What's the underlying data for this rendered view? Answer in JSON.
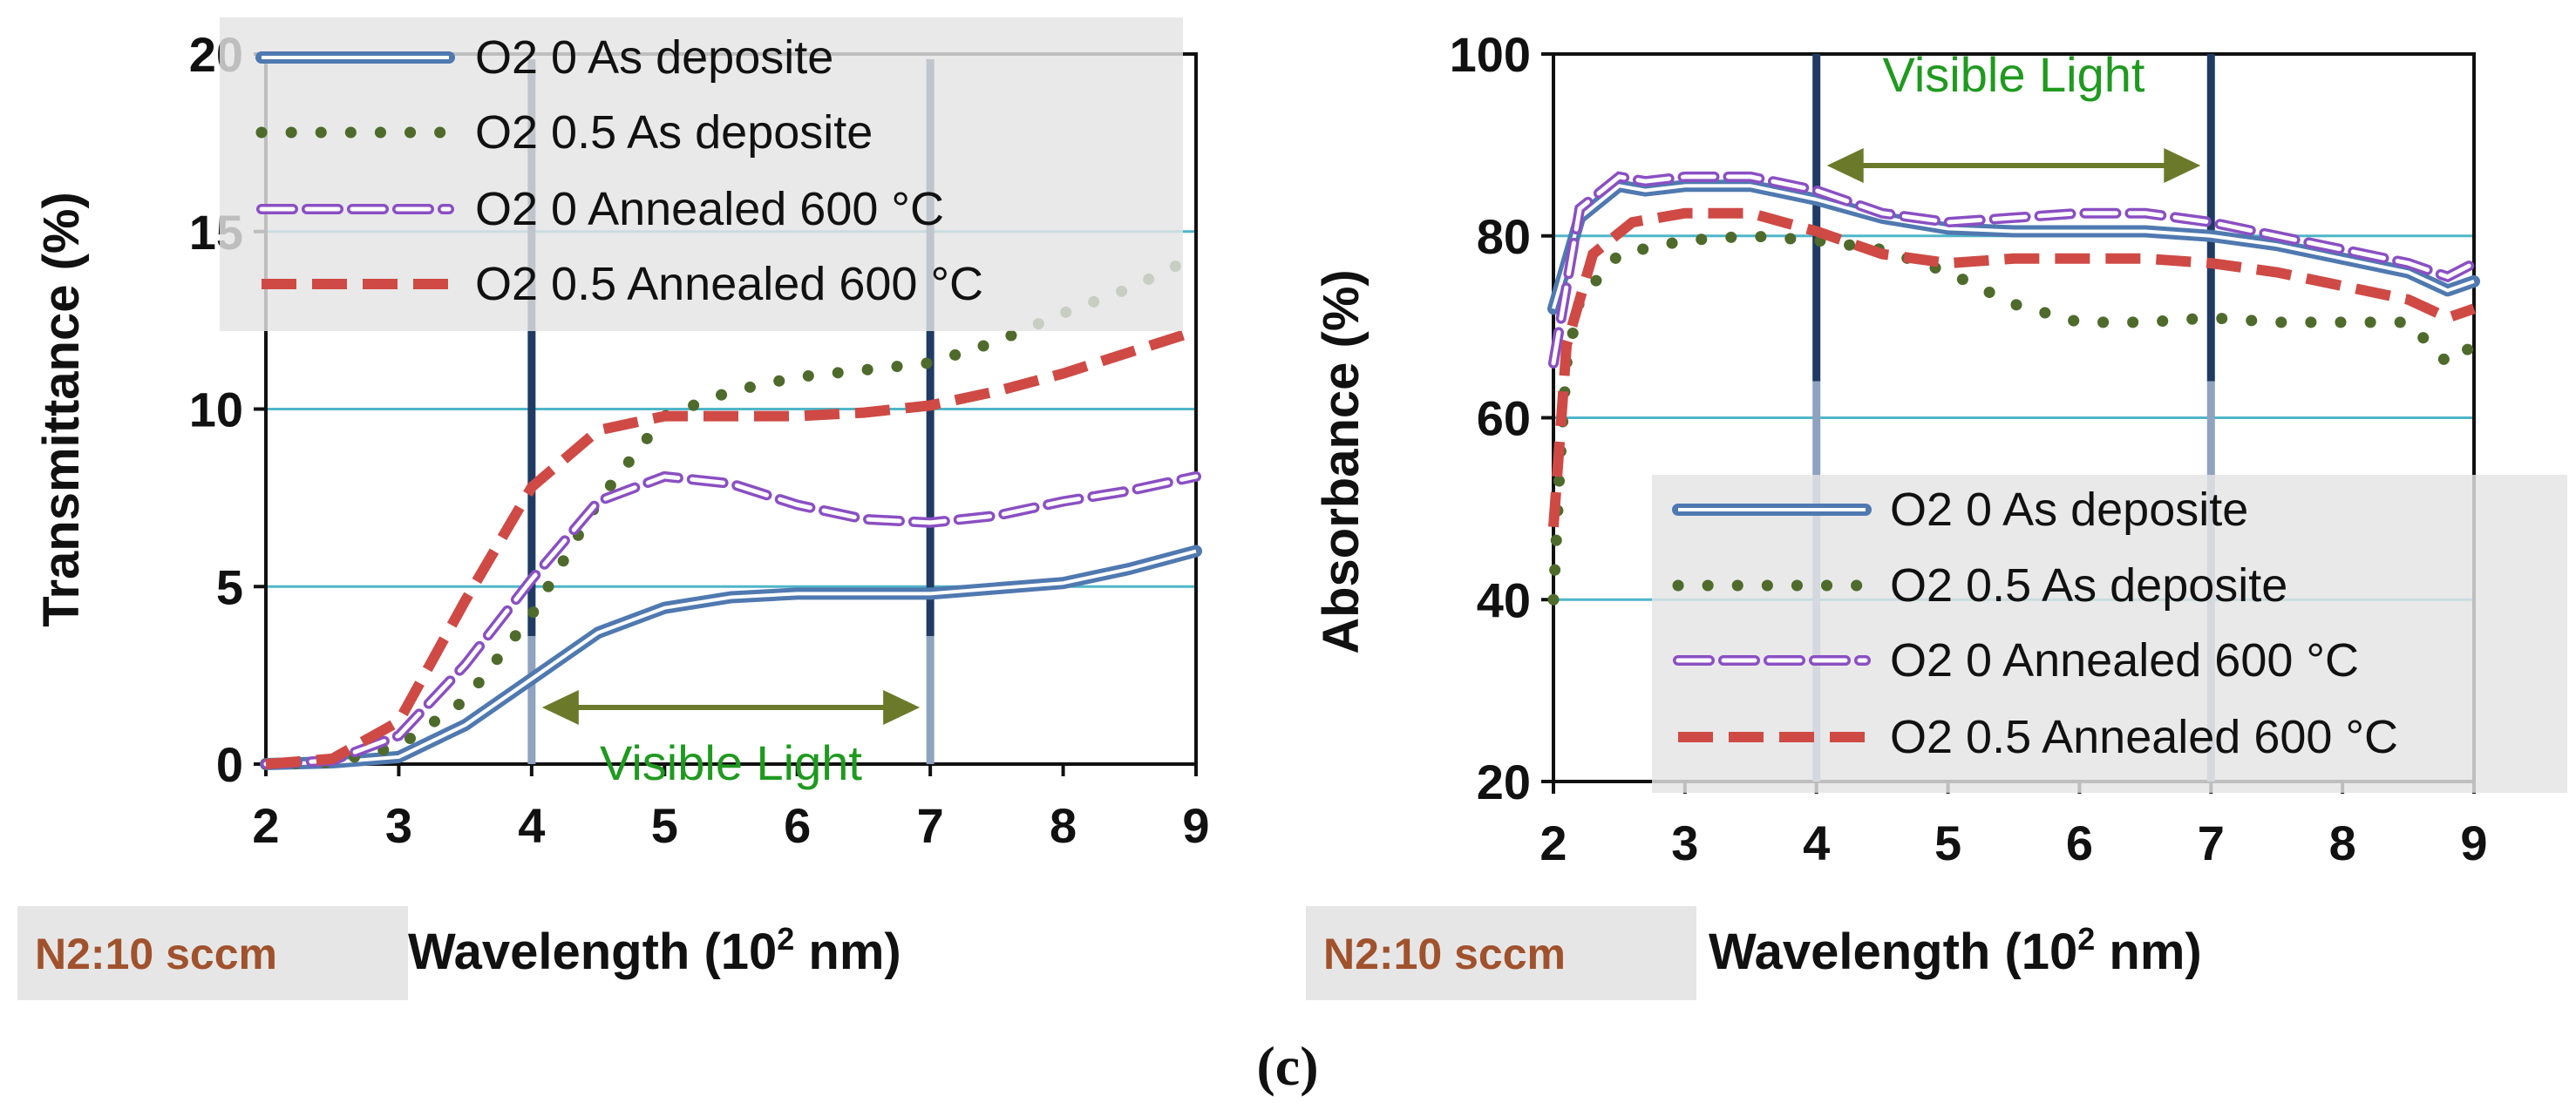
{
  "caption": "(c)",
  "colors": {
    "grid": "#4fb6c8",
    "vline": "#1f3b63",
    "arrow": "#6b7a2a",
    "visible_text": "#1f9a1f",
    "badge_text": "#a0522d",
    "badge_bg": "#e6e6e6",
    "legend_bg": "#e4e4e4"
  },
  "chart_data": [
    {
      "type": "line",
      "id": "left",
      "ylabel": "Transmittance  (%)",
      "xlabel": "Wavelength (10",
      "xlabel_sup": "2",
      "xlabel_tail": " nm)",
      "badge": "N2:10 sccm",
      "xlim": [
        2,
        9
      ],
      "ylim": [
        0,
        20
      ],
      "xticks": [
        2,
        3,
        4,
        5,
        6,
        7,
        8,
        9
      ],
      "yticks": [
        0,
        5,
        10,
        15,
        20
      ],
      "grid": "horizontal",
      "visible_band": {
        "from": 4,
        "to": 7,
        "label": "Visible Light",
        "label_position": "bottom"
      },
      "legend": {
        "position": "top"
      },
      "series": [
        {
          "name": "O2 0 As deposite",
          "style": "double",
          "color": "#4f79b0",
          "x": [
            2,
            2.5,
            3,
            3.5,
            4,
            4.5,
            5,
            5.5,
            6,
            6.5,
            7,
            7.5,
            8,
            8.5,
            9
          ],
          "y": [
            0,
            0.05,
            0.2,
            1.1,
            2.4,
            3.7,
            4.4,
            4.7,
            4.8,
            4.8,
            4.8,
            4.95,
            5.1,
            5.5,
            6.0
          ]
        },
        {
          "name": "O2 0.5 As deposite",
          "style": "dotted",
          "color": "#4e6b2c",
          "x": [
            2,
            2.5,
            3,
            3.5,
            4,
            4.5,
            5,
            5.5,
            6,
            6.5,
            7,
            7.5,
            8,
            8.5,
            9
          ],
          "y": [
            0,
            0.05,
            0.5,
            1.8,
            4.2,
            7.4,
            9.8,
            10.5,
            10.9,
            11.1,
            11.3,
            11.9,
            12.7,
            13.4,
            14.3
          ]
        },
        {
          "name": "O2 0 Annealed 600 °C",
          "style": "double-dash",
          "color": "#8a4fc3",
          "x": [
            2,
            2.5,
            3,
            3.5,
            4,
            4.5,
            5,
            5.5,
            6,
            6.5,
            7,
            7.5,
            8,
            8.5,
            9
          ],
          "y": [
            0,
            0.1,
            0.8,
            2.8,
            5.2,
            7.4,
            8.1,
            7.9,
            7.3,
            6.9,
            6.8,
            7.0,
            7.4,
            7.7,
            8.1
          ]
        },
        {
          "name": "O2 0.5 Annealed 600 °C",
          "style": "dashed",
          "color": "#cf4a45",
          "x": [
            2,
            2.5,
            3,
            3.5,
            4,
            4.5,
            5,
            5.5,
            6,
            6.5,
            7,
            7.5,
            8,
            8.5,
            9
          ],
          "y": [
            0,
            0.15,
            1.2,
            4.6,
            7.8,
            9.4,
            9.8,
            9.8,
            9.8,
            9.9,
            10.1,
            10.5,
            11.0,
            11.6,
            12.2
          ]
        }
      ]
    },
    {
      "type": "line",
      "id": "right",
      "ylabel": "Absorbance  (%)",
      "xlabel": "Wavelength (10",
      "xlabel_sup": "2",
      "xlabel_tail": " nm)",
      "badge": "N2:10 sccm",
      "xlim": [
        2,
        9
      ],
      "ylim": [
        20,
        100
      ],
      "xticks": [
        2,
        3,
        4,
        5,
        6,
        7,
        8,
        9
      ],
      "yticks": [
        20,
        40,
        60,
        80,
        100
      ],
      "grid": "horizontal",
      "visible_band": {
        "from": 4,
        "to": 7,
        "label": "Visible Light",
        "label_position": "top"
      },
      "legend": {
        "position": "bottom-right"
      },
      "series": [
        {
          "name": "O2 0 As deposite",
          "style": "double",
          "color": "#4f79b0",
          "x": [
            2,
            2.2,
            2.5,
            2.7,
            3,
            3.5,
            4,
            4.5,
            5,
            5.5,
            6,
            6.5,
            7,
            7.5,
            8,
            8.5,
            8.8,
            9
          ],
          "y": [
            72,
            82,
            85.5,
            85,
            85.5,
            85.5,
            84,
            82,
            80.8,
            80.5,
            80.5,
            80.5,
            80,
            79,
            77.5,
            76,
            74,
            75
          ]
        },
        {
          "name": "O2 0.5 As deposite",
          "style": "dotted",
          "color": "#4e6b2c",
          "x": [
            2,
            2.05,
            2.1,
            2.2,
            2.5,
            3,
            3.5,
            4,
            4.5,
            5,
            5.5,
            6,
            6.5,
            7,
            7.5,
            8,
            8.5,
            8.8,
            9
          ],
          "y": [
            40,
            55,
            66,
            73,
            78,
            79.5,
            80,
            79.5,
            78.5,
            76,
            72.5,
            70.5,
            70.5,
            71,
            70.5,
            70.5,
            70.5,
            66,
            68
          ]
        },
        {
          "name": "O2 0 Annealed 600 °C",
          "style": "double-dash",
          "color": "#8a4fc3",
          "x": [
            2,
            2.2,
            2.5,
            2.7,
            3,
            3.5,
            4,
            4.5,
            5,
            5.5,
            6,
            6.5,
            7,
            7.5,
            8,
            8.5,
            8.8,
            9
          ],
          "y": [
            66,
            83,
            86.5,
            86,
            86.5,
            86.5,
            85,
            82.5,
            81.5,
            82,
            82.5,
            82.5,
            81.5,
            80,
            78.5,
            77,
            75.5,
            77
          ]
        },
        {
          "name": "O2 0.5 Annealed 600 °C",
          "style": "dashed",
          "color": "#cf4a45",
          "x": [
            2,
            2.1,
            2.3,
            2.6,
            3,
            3.5,
            4,
            4.5,
            5,
            5.5,
            6,
            6.5,
            7,
            7.5,
            8,
            8.5,
            8.8,
            9
          ],
          "y": [
            48,
            68,
            78,
            81.5,
            82.5,
            82.5,
            80.5,
            78,
            77,
            77.5,
            77.5,
            77.5,
            77,
            76,
            74.5,
            73,
            71,
            72
          ]
        }
      ]
    }
  ]
}
